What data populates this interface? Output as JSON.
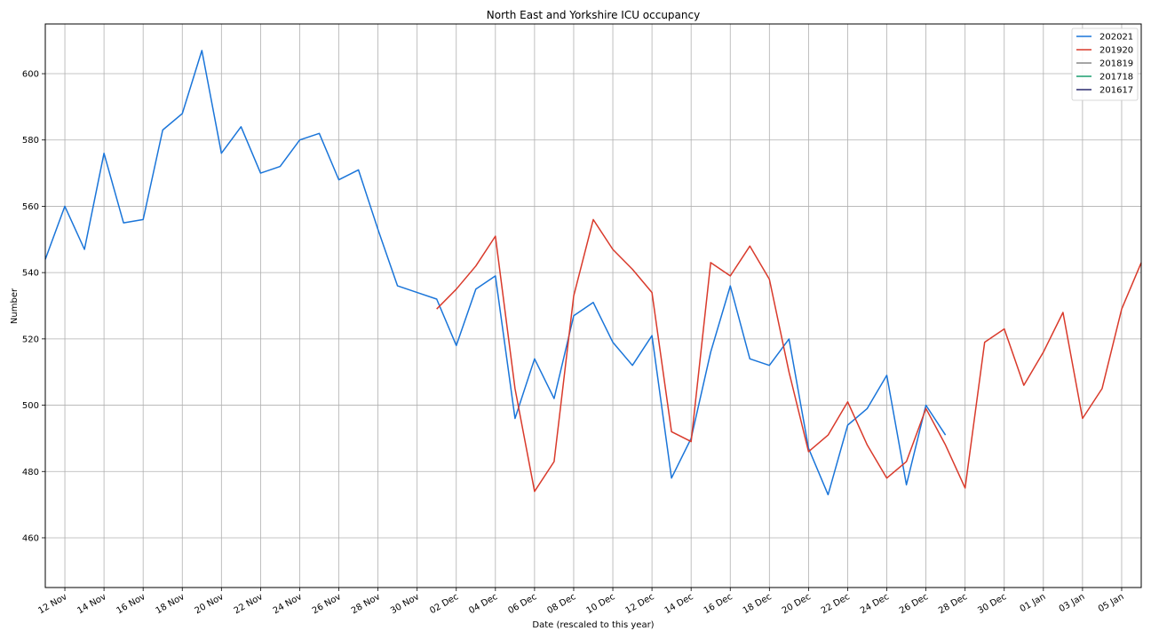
{
  "chart_data": {
    "type": "line",
    "title": "North East and Yorkshire ICU occupancy",
    "xlabel": "Date (rescaled to this year)",
    "ylabel": "Number",
    "x_start": "11 Nov",
    "x_end": "06 Jan",
    "ylim": [
      445,
      615
    ],
    "yticks": [
      460,
      480,
      500,
      520,
      540,
      560,
      580,
      600
    ],
    "xticks": [
      "12 Nov",
      "14 Nov",
      "16 Nov",
      "18 Nov",
      "20 Nov",
      "22 Nov",
      "24 Nov",
      "26 Nov",
      "28 Nov",
      "30 Nov",
      "02 Dec",
      "04 Dec",
      "06 Dec",
      "08 Dec",
      "10 Dec",
      "12 Dec",
      "14 Dec",
      "16 Dec",
      "18 Dec",
      "20 Dec",
      "22 Dec",
      "24 Dec",
      "26 Dec",
      "28 Dec",
      "30 Dec",
      "01 Jan",
      "03 Jan",
      "05 Jan"
    ],
    "grid": true,
    "legend_position": "top-right",
    "series": [
      {
        "name": "202021",
        "color": "#1a75d9",
        "x": [
          "11 Nov",
          "12 Nov",
          "13 Nov",
          "14 Nov",
          "15 Nov",
          "16 Nov",
          "17 Nov",
          "18 Nov",
          "19 Nov",
          "20 Nov",
          "21 Nov",
          "22 Nov",
          "23 Nov",
          "24 Nov",
          "25 Nov",
          "26 Nov",
          "27 Nov",
          "28 Nov",
          "29 Nov",
          "30 Nov",
          "01 Dec",
          "02 Dec",
          "03 Dec",
          "04 Dec",
          "05 Dec",
          "06 Dec",
          "07 Dec",
          "08 Dec",
          "09 Dec",
          "10 Dec",
          "11 Dec",
          "12 Dec",
          "13 Dec",
          "14 Dec",
          "15 Dec",
          "16 Dec",
          "17 Dec",
          "18 Dec",
          "19 Dec",
          "20 Dec",
          "21 Dec",
          "22 Dec",
          "23 Dec",
          "24 Dec",
          "25 Dec",
          "26 Dec",
          "27 Dec"
        ],
        "values": [
          544,
          560,
          547,
          576,
          555,
          556,
          583,
          588,
          607,
          576,
          584,
          570,
          572,
          580,
          582,
          568,
          571,
          553,
          536,
          534,
          532,
          518,
          535,
          539,
          496,
          514,
          502,
          527,
          531,
          519,
          512,
          521,
          478,
          490,
          516,
          536,
          514,
          512,
          520,
          487,
          473,
          494,
          499,
          509,
          476,
          500,
          491
        ]
      },
      {
        "name": "201920",
        "color": "#d93a2b",
        "x": [
          "01 Dec",
          "02 Dec",
          "03 Dec",
          "04 Dec",
          "05 Dec",
          "06 Dec",
          "07 Dec",
          "08 Dec",
          "09 Dec",
          "10 Dec",
          "11 Dec",
          "12 Dec",
          "13 Dec",
          "14 Dec",
          "15 Dec",
          "16 Dec",
          "17 Dec",
          "18 Dec",
          "19 Dec",
          "20 Dec",
          "21 Dec",
          "22 Dec",
          "23 Dec",
          "24 Dec",
          "25 Dec",
          "26 Dec",
          "27 Dec",
          "28 Dec",
          "29 Dec",
          "30 Dec",
          "31 Dec",
          "01 Jan",
          "02 Jan",
          "03 Jan",
          "04 Jan",
          "05 Jan",
          "06 Jan"
        ],
        "values": [
          529,
          535,
          542,
          551,
          505,
          474,
          483,
          533,
          556,
          547,
          541,
          534,
          492,
          489,
          543,
          539,
          548,
          538,
          510,
          486,
          491,
          501,
          488,
          478,
          483,
          499,
          488,
          475,
          519,
          523,
          506,
          516,
          528,
          496,
          505,
          529,
          543
        ]
      },
      {
        "name": "201819",
        "color": "#888888",
        "x": [],
        "values": []
      },
      {
        "name": "201718",
        "color": "#1a9e6e",
        "x": [],
        "values": []
      },
      {
        "name": "201617",
        "color": "#2a2a6e",
        "x": [],
        "values": []
      }
    ]
  }
}
